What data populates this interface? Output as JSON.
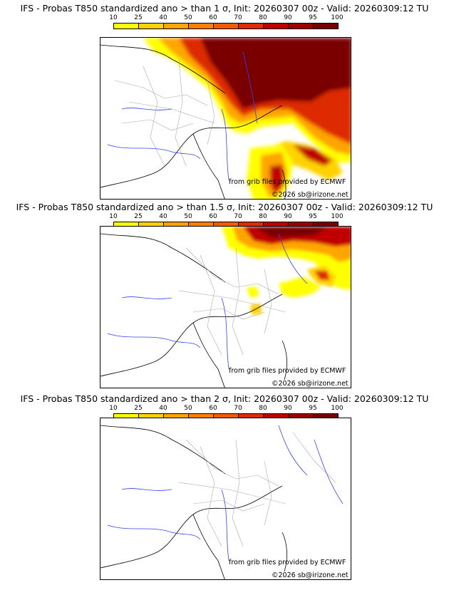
{
  "colorbar": {
    "ticks": [
      "10",
      "25",
      "40",
      "50",
      "60",
      "70",
      "80",
      "90",
      "95",
      "100"
    ],
    "colors": [
      "#ffff00",
      "#ffd200",
      "#ffa500",
      "#ff7f00",
      "#f25c00",
      "#dd2c00",
      "#c00000",
      "#9e0000",
      "#7a0000"
    ]
  },
  "credits": {
    "source": "from grib files provided by ECMWF",
    "copyright": "©2026 sb@irizone.net"
  },
  "panels": [
    {
      "title": "IFS - Probas T850  standardized ano > than 1 σ, Init: 20260307 00z - Valid: 20260309:12 TU",
      "threshold_sigma": 1
    },
    {
      "title": "IFS - Probas T850  standardized ano > than 1.5 σ, Init: 20260307 00z - Valid: 20260309:12 TU",
      "threshold_sigma": 1.5
    },
    {
      "title": "IFS - Probas T850  standardized ano > than 2 σ, Init: 20260307 00z - Valid: 20260309:12 TU",
      "threshold_sigma": 2
    }
  ]
}
